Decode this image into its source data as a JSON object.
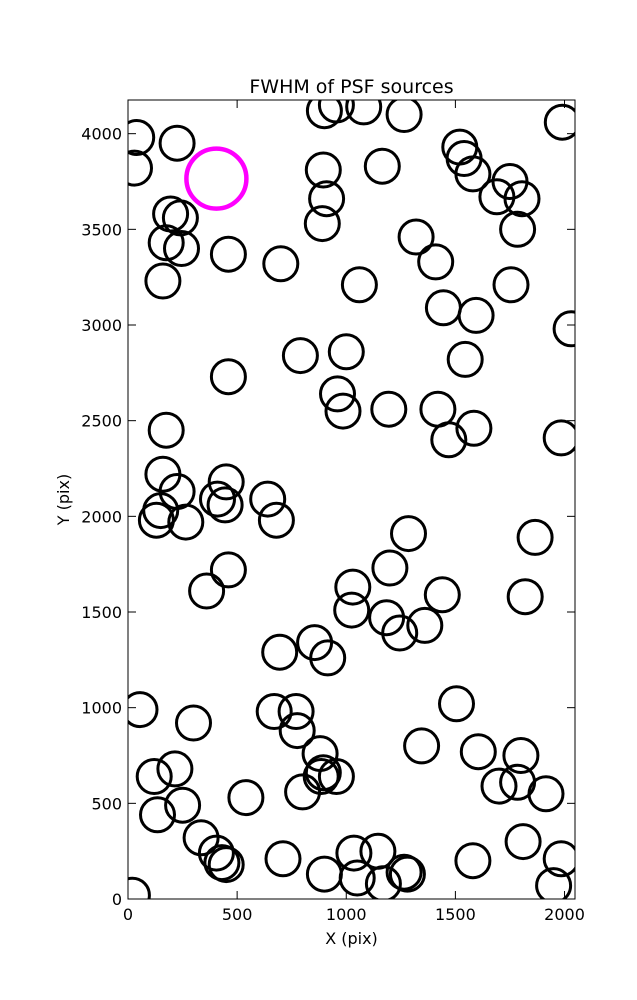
{
  "chart_data": {
    "type": "scatter",
    "title": "FWHM of PSF sources",
    "xlabel": "X (pix)",
    "ylabel": "Y (pix)",
    "xlim": [
      0,
      2048
    ],
    "ylim": [
      0,
      4176
    ],
    "x_ticks": [
      0,
      500,
      1000,
      1500,
      2000
    ],
    "y_ticks": [
      0,
      500,
      1000,
      1500,
      2000,
      2500,
      3000,
      3500,
      4000
    ],
    "grid": false,
    "marker": "open-circle",
    "series": [
      {
        "marker_color": "#000000",
        "points": [
          [
            40,
            3980
          ],
          [
            30,
            3820
          ],
          [
            225,
            3950
          ],
          [
            195,
            3580
          ],
          [
            240,
            3560
          ],
          [
            175,
            3430
          ],
          [
            245,
            3400
          ],
          [
            160,
            3230
          ],
          [
            460,
            3370
          ],
          [
            700,
            3320
          ],
          [
            900,
            4120
          ],
          [
            955,
            4150
          ],
          [
            1080,
            4140
          ],
          [
            1265,
            4100
          ],
          [
            895,
            3810
          ],
          [
            910,
            3660
          ],
          [
            890,
            3530
          ],
          [
            1165,
            3830
          ],
          [
            1060,
            3210
          ],
          [
            1320,
            3460
          ],
          [
            1410,
            3330
          ],
          [
            1445,
            3090
          ],
          [
            1595,
            3050
          ],
          [
            1520,
            3930
          ],
          [
            1540,
            3870
          ],
          [
            1580,
            3790
          ],
          [
            1690,
            3670
          ],
          [
            1750,
            3750
          ],
          [
            1805,
            3660
          ],
          [
            1785,
            3500
          ],
          [
            1755,
            3210
          ],
          [
            1990,
            4060
          ],
          [
            2030,
            2980
          ],
          [
            790,
            2840
          ],
          [
            1000,
            2860
          ],
          [
            460,
            2730
          ],
          [
            960,
            2640
          ],
          [
            985,
            2550
          ],
          [
            1195,
            2560
          ],
          [
            1420,
            2560
          ],
          [
            1470,
            2400
          ],
          [
            1585,
            2460
          ],
          [
            1545,
            2820
          ],
          [
            175,
            2450
          ],
          [
            1985,
            2410
          ],
          [
            160,
            2220
          ],
          [
            225,
            2130
          ],
          [
            450,
            2180
          ],
          [
            410,
            2090
          ],
          [
            445,
            2060
          ],
          [
            640,
            2090
          ],
          [
            680,
            1980
          ],
          [
            150,
            2030
          ],
          [
            130,
            1980
          ],
          [
            265,
            1970
          ],
          [
            1285,
            1910
          ],
          [
            1865,
            1890
          ],
          [
            460,
            1720
          ],
          [
            360,
            1610
          ],
          [
            1030,
            1630
          ],
          [
            1200,
            1730
          ],
          [
            1440,
            1590
          ],
          [
            1820,
            1580
          ],
          [
            1025,
            1510
          ],
          [
            1185,
            1470
          ],
          [
            1245,
            1390
          ],
          [
            1360,
            1430
          ],
          [
            855,
            1340
          ],
          [
            915,
            1260
          ],
          [
            695,
            1290
          ],
          [
            55,
            990
          ],
          [
            670,
            980
          ],
          [
            770,
            980
          ],
          [
            775,
            880
          ],
          [
            300,
            920
          ],
          [
            1505,
            1020
          ],
          [
            1345,
            800
          ],
          [
            1605,
            770
          ],
          [
            1800,
            750
          ],
          [
            880,
            760
          ],
          [
            895,
            660
          ],
          [
            955,
            640
          ],
          [
            885,
            640
          ],
          [
            120,
            640
          ],
          [
            215,
            680
          ],
          [
            1700,
            590
          ],
          [
            1785,
            610
          ],
          [
            1915,
            550
          ],
          [
            800,
            560
          ],
          [
            250,
            490
          ],
          [
            135,
            440
          ],
          [
            540,
            530
          ],
          [
            335,
            320
          ],
          [
            405,
            240
          ],
          [
            430,
            190
          ],
          [
            450,
            180
          ],
          [
            710,
            210
          ],
          [
            1035,
            240
          ],
          [
            1145,
            250
          ],
          [
            1265,
            140
          ],
          [
            1280,
            130
          ],
          [
            1810,
            300
          ],
          [
            1580,
            200
          ],
          [
            1985,
            210
          ],
          [
            1950,
            70
          ],
          [
            900,
            130
          ],
          [
            1050,
            110
          ],
          [
            1170,
            80
          ],
          [
            20,
            20
          ]
        ]
      },
      {
        "marker_color": "#ff00ff",
        "points": [
          [
            405,
            3765
          ]
        ]
      }
    ]
  }
}
